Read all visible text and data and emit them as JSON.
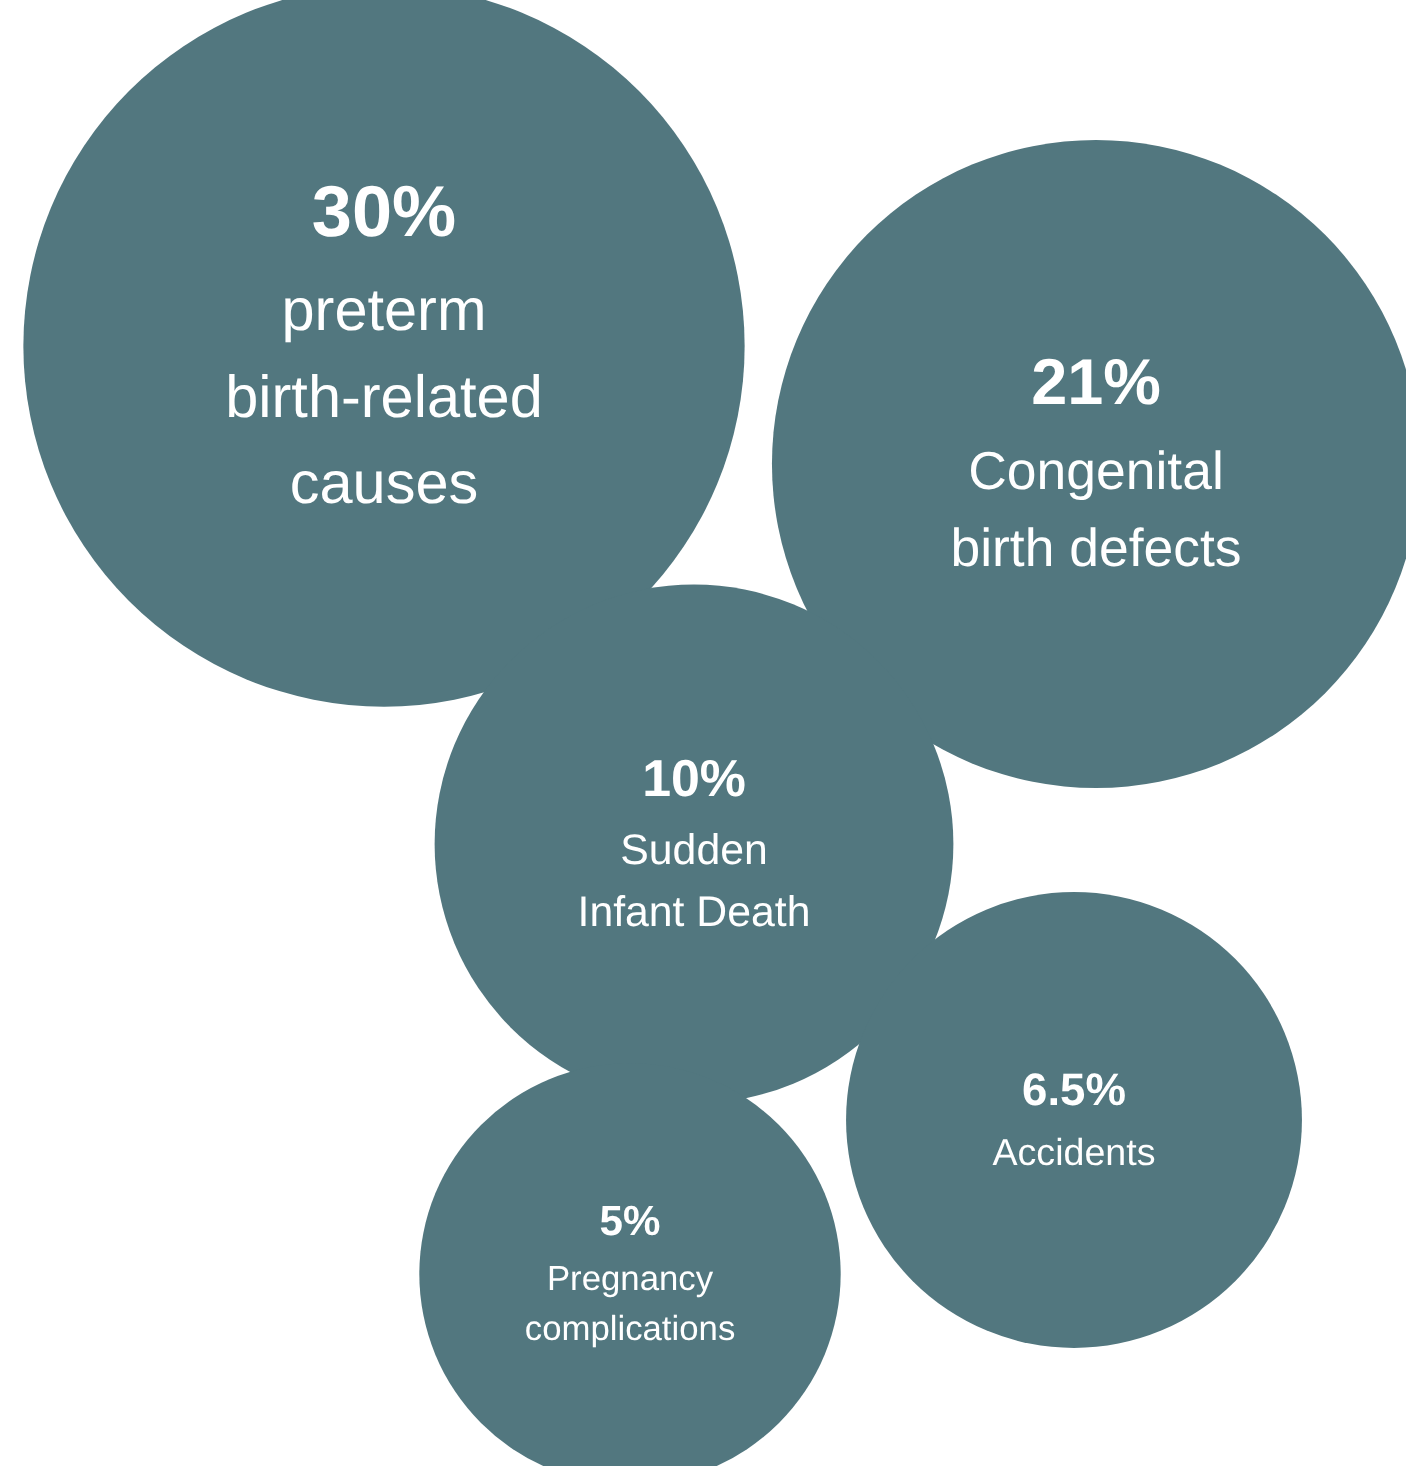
{
  "chart_data": {
    "type": "other",
    "categories": [
      "preterm birth-related causes",
      "Congenital birth defects",
      "Sudden Infant Death",
      "Accidents",
      "Pregnancy complications"
    ],
    "values": [
      30,
      21,
      10,
      6.5,
      5
    ],
    "value_labels": [
      "30%",
      "21%",
      "10%",
      "6.5%",
      "5%"
    ],
    "color": "#52777f"
  }
}
